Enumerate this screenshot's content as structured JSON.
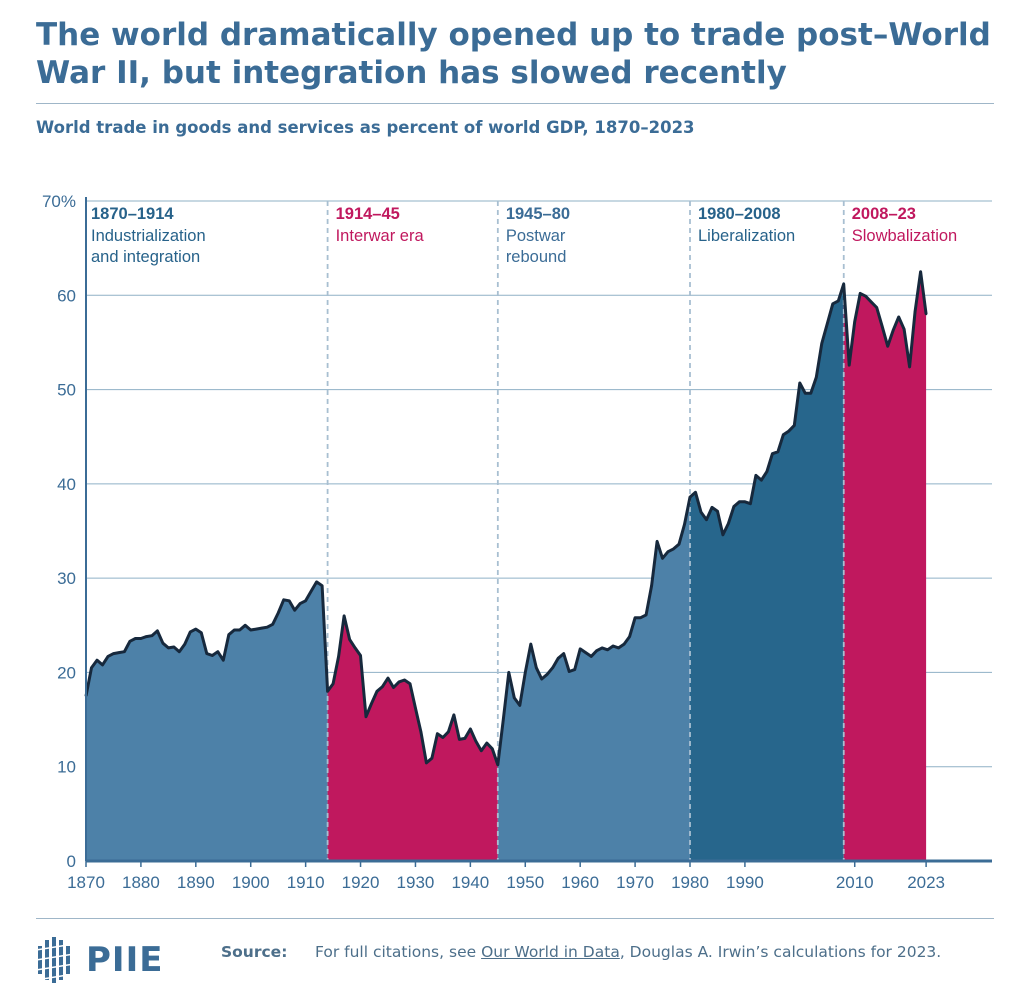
{
  "header": {
    "title": "The world dramatically opened up to trade post–World War II, but integration has slowed recently",
    "subtitle": "World trade in goods and services as percent of world GDP, 1870–2023"
  },
  "footer": {
    "logo_text": "PIIE",
    "source_label": "Source:",
    "source_pre": "For full citations, see ",
    "source_link": "Our World in Data",
    "source_post": ", Douglas A. Irwin’s calculations for 2023."
  },
  "colors": {
    "blue": "#4d81a8",
    "dark_blue": "#27668c",
    "magenta": "#c0185e",
    "line": "#17293d",
    "title": "#3b6c96",
    "grid": "#8fb0c6"
  },
  "chart_data": {
    "type": "area",
    "title": "World trade in goods and services as percent of world GDP, 1870–2023",
    "xlabel": "",
    "ylabel": "",
    "xlim": [
      1870,
      2035
    ],
    "ylim": [
      0,
      70
    ],
    "y_ticks": [
      "0",
      "10",
      "20",
      "30",
      "40",
      "50",
      "60",
      "70%"
    ],
    "x_ticks": [
      "1870",
      "1880",
      "1890",
      "1900",
      "1910",
      "1920",
      "1930",
      "1940",
      "1950",
      "1960",
      "1970",
      "1980",
      "1990",
      "2010",
      "2023"
    ],
    "grid": true,
    "eras": [
      {
        "start": 1870,
        "end": 1914,
        "label": "1870–1914",
        "desc": [
          "Industrialization",
          "and integration"
        ],
        "fill": "blue",
        "label_color": "dark_blue"
      },
      {
        "start": 1914,
        "end": 1945,
        "label": "1914–45",
        "desc": [
          "Interwar era"
        ],
        "fill": "magenta",
        "label_color": "magenta"
      },
      {
        "start": 1945,
        "end": 1980,
        "label": "1945–80",
        "desc": [
          "Postwar",
          "rebound"
        ],
        "fill": "blue",
        "label_color": "blue"
      },
      {
        "start": 1980,
        "end": 2008,
        "label": "1980–2008",
        "desc": [
          "Liberalization"
        ],
        "fill": "dark_blue",
        "label_color": "dark_blue"
      },
      {
        "start": 2008,
        "end": 2023,
        "label": "2008–23",
        "desc": [
          "Slowbalization"
        ],
        "fill": "magenta",
        "label_color": "magenta"
      }
    ],
    "x": [
      1870,
      1871,
      1872,
      1873,
      1874,
      1875,
      1876,
      1877,
      1878,
      1879,
      1880,
      1881,
      1882,
      1883,
      1884,
      1885,
      1886,
      1887,
      1888,
      1889,
      1890,
      1891,
      1892,
      1893,
      1894,
      1895,
      1896,
      1897,
      1898,
      1899,
      1900,
      1901,
      1902,
      1903,
      1904,
      1905,
      1906,
      1907,
      1908,
      1909,
      1910,
      1911,
      1912,
      1913,
      1914,
      1915,
      1916,
      1917,
      1918,
      1919,
      1920,
      1921,
      1922,
      1923,
      1924,
      1925,
      1926,
      1927,
      1928,
      1929,
      1930,
      1931,
      1932,
      1933,
      1934,
      1935,
      1936,
      1937,
      1938,
      1939,
      1940,
      1941,
      1942,
      1943,
      1944,
      1945,
      1946,
      1947,
      1948,
      1949,
      1950,
      1951,
      1952,
      1953,
      1954,
      1955,
      1956,
      1957,
      1958,
      1959,
      1960,
      1961,
      1962,
      1963,
      1964,
      1965,
      1966,
      1967,
      1968,
      1969,
      1970,
      1971,
      1972,
      1973,
      1974,
      1975,
      1976,
      1977,
      1978,
      1979,
      1980,
      1981,
      1982,
      1983,
      1984,
      1985,
      1986,
      1987,
      1988,
      1989,
      1990,
      1991,
      1992,
      1993,
      1994,
      1995,
      1996,
      1997,
      1998,
      1999,
      2000,
      2001,
      2002,
      2003,
      2004,
      2005,
      2006,
      2007,
      2008,
      2009,
      2010,
      2011,
      2012,
      2013,
      2014,
      2015,
      2016,
      2017,
      2018,
      2019,
      2020,
      2021,
      2022,
      2023
    ],
    "values": [
      17.5,
      20.5,
      21.3,
      20.8,
      21.7,
      22.0,
      22.1,
      22.2,
      23.3,
      23.6,
      23.6,
      23.8,
      23.9,
      24.4,
      23.1,
      22.6,
      22.7,
      22.2,
      23.0,
      24.3,
      24.6,
      24.2,
      22.0,
      21.8,
      22.2,
      21.3,
      24.0,
      24.5,
      24.5,
      25.0,
      24.5,
      24.6,
      24.7,
      24.8,
      25.1,
      26.3,
      27.7,
      27.6,
      26.6,
      27.3,
      27.6,
      28.6,
      29.6,
      29.2,
      18.0,
      18.8,
      21.7,
      26.0,
      23.5,
      22.6,
      21.8,
      15.3,
      16.7,
      18.0,
      18.5,
      19.4,
      18.4,
      19.0,
      19.2,
      18.8,
      16.2,
      13.7,
      10.4,
      10.9,
      13.5,
      13.1,
      13.7,
      15.5,
      12.9,
      13.0,
      14.0,
      12.7,
      11.7,
      12.5,
      11.9,
      10.2,
      15.0,
      20.0,
      17.3,
      16.5,
      20.0,
      23.0,
      20.5,
      19.3,
      19.8,
      20.5,
      21.5,
      22.0,
      20.1,
      20.3,
      22.5,
      22.1,
      21.7,
      22.3,
      22.6,
      22.4,
      22.8,
      22.6,
      23.0,
      23.8,
      25.8,
      25.8,
      26.1,
      29.2,
      33.9,
      32.1,
      32.8,
      33.1,
      33.6,
      35.7,
      38.6,
      39.1,
      37.0,
      36.2,
      37.5,
      37.1,
      34.6,
      35.8,
      37.6,
      38.1,
      38.1,
      37.9,
      40.9,
      40.4,
      41.3,
      43.2,
      43.4,
      45.2,
      45.6,
      46.2,
      50.7,
      49.6,
      49.6,
      51.3,
      54.9,
      57.0,
      59.1,
      59.4,
      61.2,
      52.6,
      57.2,
      60.2,
      59.9,
      59.3,
      58.7,
      56.7,
      54.6,
      56.3,
      57.7,
      56.4,
      52.4,
      58.3,
      62.5,
      58.0
    ]
  }
}
